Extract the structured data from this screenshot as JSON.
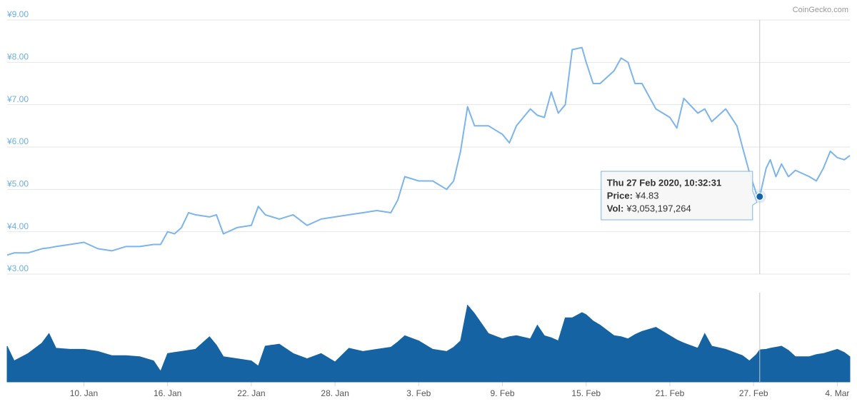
{
  "chart_data": {
    "type": "line",
    "credit": "CoinGecko.com",
    "x": [
      4.5,
      5,
      6,
      7,
      7.5,
      8,
      9,
      10,
      11,
      12,
      13,
      14,
      15,
      15.5,
      16,
      16.5,
      17,
      17.5,
      18,
      19,
      19.5,
      20,
      21,
      22,
      22.5,
      23,
      24,
      25,
      26,
      27,
      28,
      29,
      30,
      31,
      32,
      32.5,
      33,
      34,
      35,
      36,
      36.5,
      37,
      37.5,
      38,
      39,
      40,
      40.5,
      41,
      42,
      42.5,
      43,
      43.5,
      44,
      44.5,
      45,
      45.7,
      46,
      46.5,
      47,
      48,
      48.5,
      49,
      49.5,
      50,
      51,
      52,
      52.5,
      53,
      54,
      54.5,
      55,
      56,
      56.8,
      57.2,
      57.7,
      58.2,
      58.44,
      58.9,
      59.2,
      59.6,
      60,
      60.5,
      61,
      62,
      62.5,
      63,
      63.5,
      64,
      64.5,
      64.9
    ],
    "series": [
      {
        "name": "Price",
        "color": "#7cb5ec",
        "values": [
          3.45,
          3.5,
          3.5,
          3.6,
          3.62,
          3.65,
          3.7,
          3.75,
          3.6,
          3.55,
          3.65,
          3.65,
          3.7,
          3.7,
          4.0,
          3.95,
          4.1,
          4.45,
          4.4,
          4.35,
          4.4,
          3.95,
          4.1,
          4.15,
          4.6,
          4.4,
          4.3,
          4.4,
          4.15,
          4.3,
          4.35,
          4.4,
          4.45,
          4.5,
          4.45,
          4.75,
          5.3,
          5.2,
          5.2,
          5.0,
          5.2,
          5.9,
          6.95,
          6.5,
          6.5,
          6.3,
          6.1,
          6.5,
          6.9,
          6.75,
          6.7,
          7.3,
          6.8,
          7.0,
          8.3,
          8.35,
          8.0,
          7.5,
          7.5,
          7.8,
          8.1,
          8.0,
          7.5,
          7.5,
          6.9,
          6.7,
          6.45,
          7.15,
          6.8,
          6.9,
          6.6,
          6.9,
          6.5,
          6.0,
          5.4,
          4.9,
          4.83,
          5.5,
          5.7,
          5.3,
          5.6,
          5.3,
          5.45,
          5.3,
          5.2,
          5.5,
          5.9,
          5.75,
          5.7,
          5.8
        ]
      },
      {
        "name": "Vol",
        "color": "#1563a3",
        "axis": "y2",
        "values": [
          3400000000,
          2000000000,
          2700000000,
          3700000000,
          4600000000,
          3200000000,
          3100000000,
          3100000000,
          2900000000,
          2500000000,
          2500000000,
          2400000000,
          2000000000,
          1000000000,
          2700000000,
          2800000000,
          2900000000,
          3000000000,
          3100000000,
          4300000000,
          3500000000,
          2400000000,
          2200000000,
          2000000000,
          1500000000,
          3400000000,
          3600000000,
          2700000000,
          2200000000,
          2700000000,
          1900000000,
          3200000000,
          2900000000,
          3100000000,
          3300000000,
          3800000000,
          4400000000,
          3900000000,
          3100000000,
          2900000000,
          3300000000,
          3900000000,
          7300000000,
          6500000000,
          4600000000,
          4100000000,
          4300000000,
          4400000000,
          4100000000,
          5400000000,
          4400000000,
          4200000000,
          3900000000,
          6100000000,
          6100000000,
          6600000000,
          6400000000,
          5800000000,
          5400000000,
          4400000000,
          4300000000,
          4100000000,
          4500000000,
          4800000000,
          5200000000,
          4400000000,
          4000000000,
          3700000000,
          3200000000,
          4600000000,
          3400000000,
          3100000000,
          2700000000,
          2500000000,
          2000000000,
          2600000000,
          3053197264,
          3100000000,
          3200000000,
          3300000000,
          3400000000,
          3000000000,
          2400000000,
          2400000000,
          2600000000,
          2700000000,
          2900000000,
          3100000000,
          2800000000,
          2400000000
        ]
      }
    ],
    "xlim": [
      4.5,
      64.9
    ],
    "xticks": [
      {
        "value": 10,
        "label": "10. Jan"
      },
      {
        "value": 16,
        "label": "16. Jan"
      },
      {
        "value": 22,
        "label": "22. Jan"
      },
      {
        "value": 28,
        "label": "28. Jan"
      },
      {
        "value": 34,
        "label": "3. Feb"
      },
      {
        "value": 40,
        "label": "9. Feb"
      },
      {
        "value": 46,
        "label": "15. Feb"
      },
      {
        "value": 52,
        "label": "21. Feb"
      },
      {
        "value": 58,
        "label": "27. Feb"
      },
      {
        "value": 64,
        "label": "4. Mar"
      }
    ],
    "ylim": [
      3,
      9
    ],
    "yticks": [
      {
        "value": 3,
        "label": "¥3.00"
      },
      {
        "value": 4,
        "label": "¥4.00"
      },
      {
        "value": 5,
        "label": "¥5.00"
      },
      {
        "value": 6,
        "label": "¥6.00"
      },
      {
        "value": 7,
        "label": "¥7.00"
      },
      {
        "value": 8,
        "label": "¥8.00"
      },
      {
        "value": 9,
        "label": "¥9.00"
      }
    ],
    "y2lim": [
      0,
      8500000000
    ],
    "grid": true,
    "tooltip": {
      "x": 58.44,
      "title": "Thu 27 Feb 2020, 10:32:31",
      "price_label": "Price:",
      "price": "¥4.83",
      "price_value": 4.83,
      "vol_label": "Vol:",
      "vol": "¥3,053,197,264",
      "vol_value": 3053197264
    }
  }
}
